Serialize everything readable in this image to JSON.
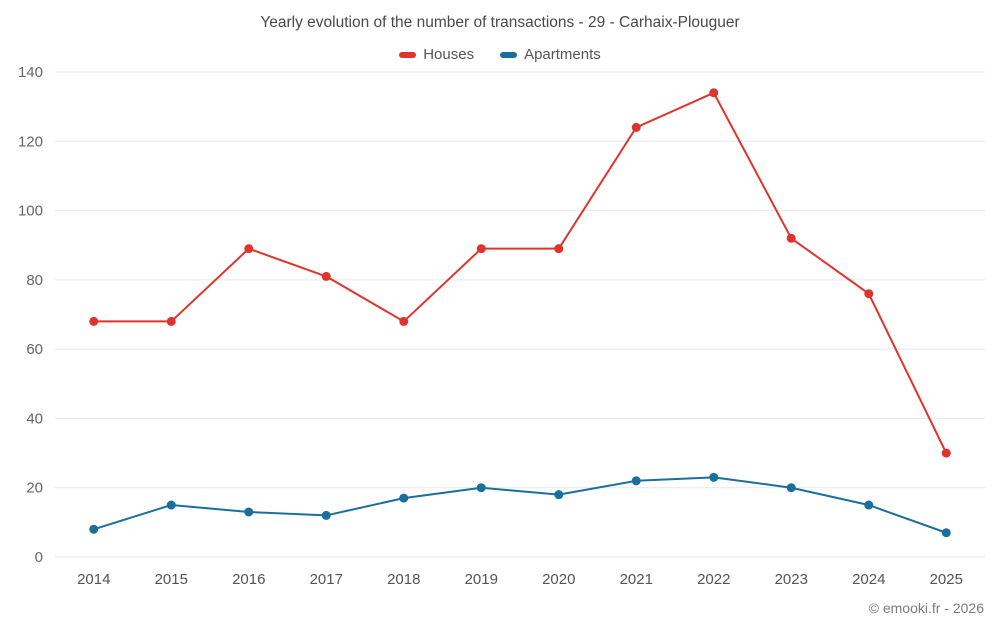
{
  "title": "Yearly evolution of the number of transactions - 29 - Carhaix-Plouguer",
  "footer": "© emooki.fr - 2026",
  "colors": {
    "grid": "#e7e7e7",
    "title_text": "#4a4a4a",
    "tick_text": "#666666",
    "houses": "#e0332c",
    "apartments": "#1b6f9d"
  },
  "chart_data": {
    "type": "line",
    "title": "Yearly evolution of the number of transactions - 29 - Carhaix-Plouguer",
    "categories": [
      "2014",
      "2015",
      "2016",
      "2017",
      "2018",
      "2019",
      "2020",
      "2021",
      "2022",
      "2023",
      "2024",
      "2025"
    ],
    "series": [
      {
        "name": "Houses",
        "color": "#e0332c",
        "values": [
          68,
          68,
          89,
          81,
          68,
          89,
          89,
          124,
          134,
          92,
          76,
          30
        ]
      },
      {
        "name": "Apartments",
        "color": "#1b6f9d",
        "values": [
          8,
          15,
          13,
          12,
          17,
          20,
          18,
          22,
          23,
          20,
          15,
          7
        ]
      }
    ],
    "ylim": [
      0,
      140
    ],
    "ytick_step": 20,
    "grid": "horizontal",
    "legend_position": "top",
    "xlabel": "",
    "ylabel": ""
  }
}
